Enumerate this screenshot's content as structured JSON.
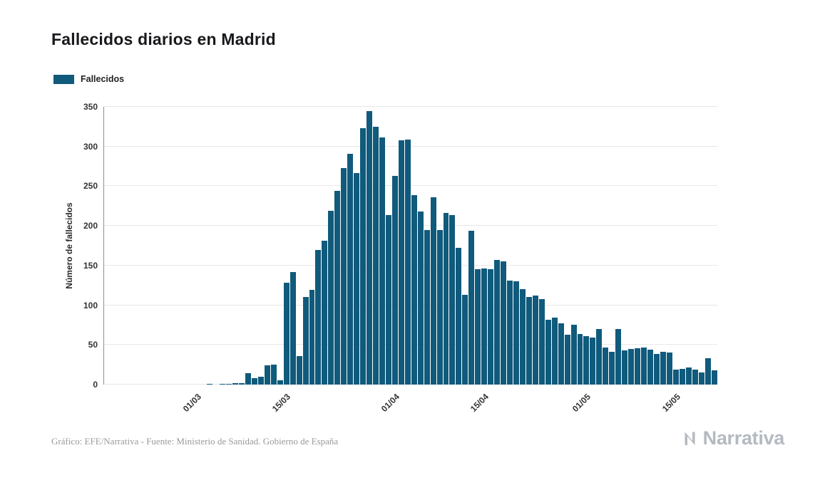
{
  "footer": {
    "credit": "Gráfico: EFE/Narrativa - Fuente: Ministerio de Sanidad. Gobierno de España",
    "brand": "Narrativa"
  },
  "chart_data": {
    "type": "bar",
    "title": "Fallecidos diarios en Madrid",
    "xlabel": "",
    "ylabel": "Número de fallecidos",
    "ylim": [
      0,
      350
    ],
    "yticks": [
      0,
      50,
      100,
      150,
      200,
      250,
      300,
      350
    ],
    "grid": "horizontal",
    "legend_position": "top-left",
    "x_start_date": "16/02",
    "x_end_date": "21/05",
    "xticks": [
      {
        "index": 14,
        "label": "01/03"
      },
      {
        "index": 28,
        "label": "15/03"
      },
      {
        "index": 45,
        "label": "01/04"
      },
      {
        "index": 59,
        "label": "15/04"
      },
      {
        "index": 75,
        "label": "01/05"
      },
      {
        "index": 89,
        "label": "15/05"
      }
    ],
    "series": [
      {
        "name": "Fallecidos",
        "color": "#105a7c",
        "values": [
          0,
          0,
          0,
          0,
          0,
          0,
          0,
          0,
          0,
          0,
          0,
          0,
          0,
          0,
          0,
          0,
          1,
          0,
          1,
          1,
          2,
          2,
          14,
          8,
          10,
          24,
          25,
          5,
          128,
          142,
          36,
          110,
          119,
          170,
          181,
          219,
          244,
          273,
          291,
          267,
          323,
          345,
          325,
          311,
          214,
          263,
          308,
          309,
          239,
          218,
          195,
          236,
          195,
          216,
          214,
          172,
          113,
          194,
          145,
          146,
          145,
          157,
          155,
          131,
          130,
          120,
          110,
          112,
          108,
          82,
          84,
          77,
          63,
          75,
          64,
          61,
          59,
          70,
          47,
          41,
          70,
          43,
          45,
          46,
          47,
          44,
          39,
          41,
          40,
          19,
          20,
          22,
          19,
          15,
          33,
          18
        ]
      }
    ]
  }
}
